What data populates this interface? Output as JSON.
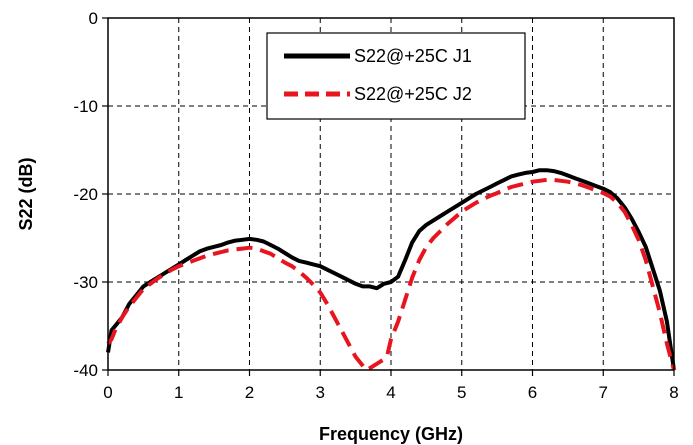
{
  "chart_data": {
    "type": "line",
    "xlabel": "Frequency (GHz)",
    "ylabel": "S22 (dB)",
    "xlim": [
      0,
      8
    ],
    "ylim": [
      -40,
      0
    ],
    "xticks": [
      0,
      1,
      2,
      3,
      4,
      5,
      6,
      7,
      8
    ],
    "xtick_labels": [
      "0",
      "1",
      "2",
      "3",
      "4",
      "5",
      "6",
      "7",
      "8"
    ],
    "yticks": [
      0,
      -10,
      -20,
      -30,
      -40
    ],
    "ytick_labels": [
      "0",
      "-10",
      "-20",
      "-30",
      "-40"
    ],
    "grid": true,
    "legend_position": "top-right",
    "series": [
      {
        "name": "S22@+25C J1",
        "color": "#000000",
        "style": "solid",
        "x": [
          0,
          0.05,
          0.1,
          0.2,
          0.3,
          0.4,
          0.5,
          0.6,
          0.7,
          0.8,
          0.9,
          1.0,
          1.1,
          1.2,
          1.3,
          1.4,
          1.5,
          1.6,
          1.7,
          1.8,
          1.9,
          2.0,
          2.1,
          2.2,
          2.3,
          2.4,
          2.5,
          2.6,
          2.7,
          2.8,
          2.9,
          3.0,
          3.1,
          3.2,
          3.3,
          3.4,
          3.5,
          3.6,
          3.7,
          3.8,
          3.9,
          4.0,
          4.1,
          4.2,
          4.3,
          4.4,
          4.5,
          4.6,
          4.7,
          4.8,
          4.9,
          5.0,
          5.1,
          5.2,
          5.3,
          5.4,
          5.5,
          5.6,
          5.7,
          5.8,
          5.9,
          6.0,
          6.1,
          6.2,
          6.3,
          6.4,
          6.5,
          6.6,
          6.7,
          6.8,
          6.9,
          7.0,
          7.1,
          7.2,
          7.3,
          7.4,
          7.5,
          7.6,
          7.7,
          7.8,
          7.9,
          8.0
        ],
        "values": [
          -38,
          -35.5,
          -35,
          -34,
          -32.5,
          -31.5,
          -30.5,
          -30,
          -29.5,
          -29,
          -28.5,
          -28,
          -27.5,
          -27,
          -26.5,
          -26.2,
          -26,
          -25.8,
          -25.5,
          -25.3,
          -25.2,
          -25.1,
          -25.2,
          -25.4,
          -25.8,
          -26.2,
          -26.7,
          -27.2,
          -27.6,
          -27.8,
          -28.0,
          -28.2,
          -28.6,
          -29,
          -29.4,
          -29.8,
          -30.2,
          -30.5,
          -30.5,
          -30.7,
          -30.2,
          -30.0,
          -29.4,
          -27.5,
          -25.5,
          -24.2,
          -23.5,
          -23,
          -22.5,
          -22,
          -21.5,
          -21,
          -20.5,
          -20,
          -19.6,
          -19.2,
          -18.8,
          -18.4,
          -18,
          -17.8,
          -17.6,
          -17.5,
          -17.3,
          -17.3,
          -17.4,
          -17.6,
          -17.9,
          -18.2,
          -18.5,
          -18.8,
          -19.1,
          -19.4,
          -19.8,
          -20.5,
          -21.5,
          -22.8,
          -24.3,
          -26,
          -28.5,
          -31,
          -34.5,
          -40
        ]
      },
      {
        "name": "S22@+25C J2",
        "color": "#e8141e",
        "style": "dashed",
        "x": [
          0,
          0.05,
          0.1,
          0.2,
          0.3,
          0.4,
          0.5,
          0.6,
          0.7,
          0.8,
          0.9,
          1.0,
          1.1,
          1.2,
          1.3,
          1.4,
          1.5,
          1.6,
          1.7,
          1.8,
          1.9,
          2.0,
          2.1,
          2.2,
          2.3,
          2.4,
          2.5,
          2.6,
          2.7,
          2.8,
          2.9,
          3.0,
          3.1,
          3.2,
          3.3,
          3.4,
          3.5,
          3.6,
          3.65,
          3.7,
          3.8,
          3.9,
          3.95,
          4.0,
          4.1,
          4.2,
          4.3,
          4.4,
          4.5,
          4.6,
          4.7,
          4.8,
          4.9,
          5.0,
          5.1,
          5.2,
          5.3,
          5.4,
          5.5,
          5.6,
          5.7,
          5.8,
          5.9,
          6.0,
          6.1,
          6.2,
          6.3,
          6.4,
          6.5,
          6.6,
          6.7,
          6.8,
          6.9,
          7.0,
          7.1,
          7.2,
          7.3,
          7.4,
          7.5,
          7.6,
          7.7,
          7.8,
          7.9,
          8.0
        ],
        "values": [
          -37,
          -36.5,
          -35.5,
          -34,
          -32.8,
          -31.8,
          -30.8,
          -30.2,
          -29.6,
          -29.1,
          -28.6,
          -28.2,
          -27.9,
          -27.6,
          -27.3,
          -27,
          -26.8,
          -26.6,
          -26.4,
          -26.3,
          -26.2,
          -26.1,
          -26.2,
          -26.5,
          -26.8,
          -27.3,
          -27.8,
          -28.2,
          -28.8,
          -29.5,
          -30.3,
          -31.2,
          -32.5,
          -34,
          -35.5,
          -37,
          -38.5,
          -39.5,
          -40,
          -39.8,
          -39.3,
          -38.8,
          -38.2,
          -36.5,
          -34.5,
          -32,
          -29.5,
          -27.5,
          -26,
          -25,
          -24.2,
          -23.4,
          -22.7,
          -22,
          -21.5,
          -21,
          -20.6,
          -20.2,
          -19.9,
          -19.5,
          -19.2,
          -19,
          -18.8,
          -18.6,
          -18.5,
          -18.4,
          -18.4,
          -18.5,
          -18.6,
          -18.8,
          -19,
          -19.3,
          -19.6,
          -19.9,
          -20.3,
          -21,
          -22,
          -23.5,
          -25.2,
          -27.5,
          -30.5,
          -33.5,
          -37,
          -40
        ]
      }
    ]
  }
}
